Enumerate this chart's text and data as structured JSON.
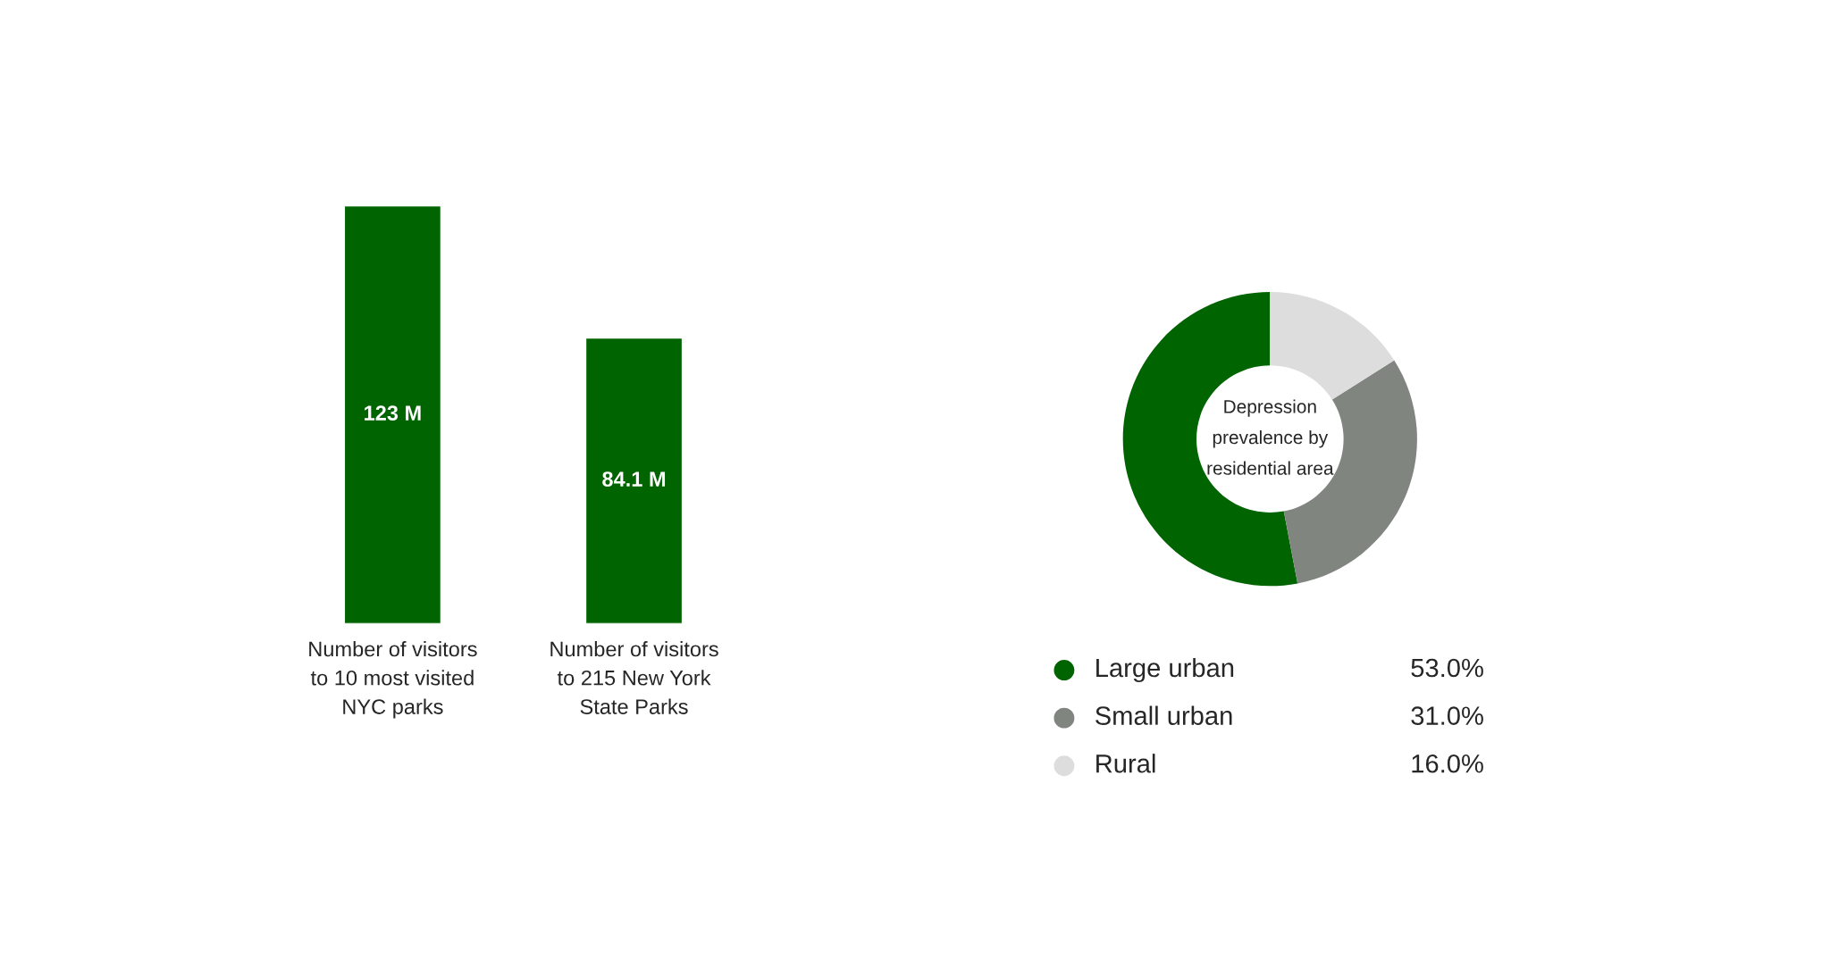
{
  "chart_data": [
    {
      "type": "bar",
      "categories": [
        "Number of visitors\nto 10 most visited\nNYC parks",
        "Number of visitors\nto 215 New York\nState Parks"
      ],
      "values": [
        123,
        84.1
      ],
      "value_labels": [
        "123 M",
        "84.1 M"
      ],
      "color": "#006400"
    },
    {
      "type": "donut",
      "title": "Depression\nprevalence by\nresidential area",
      "categories": [
        "Large urban",
        "Small urban",
        "Rural"
      ],
      "values": [
        53,
        31,
        16
      ],
      "value_labels": [
        "53.0%",
        "31.0%",
        "16.0%"
      ],
      "colors": [
        "#006400",
        "#808580",
        "#dddddd"
      ],
      "legend": "bottom"
    }
  ]
}
